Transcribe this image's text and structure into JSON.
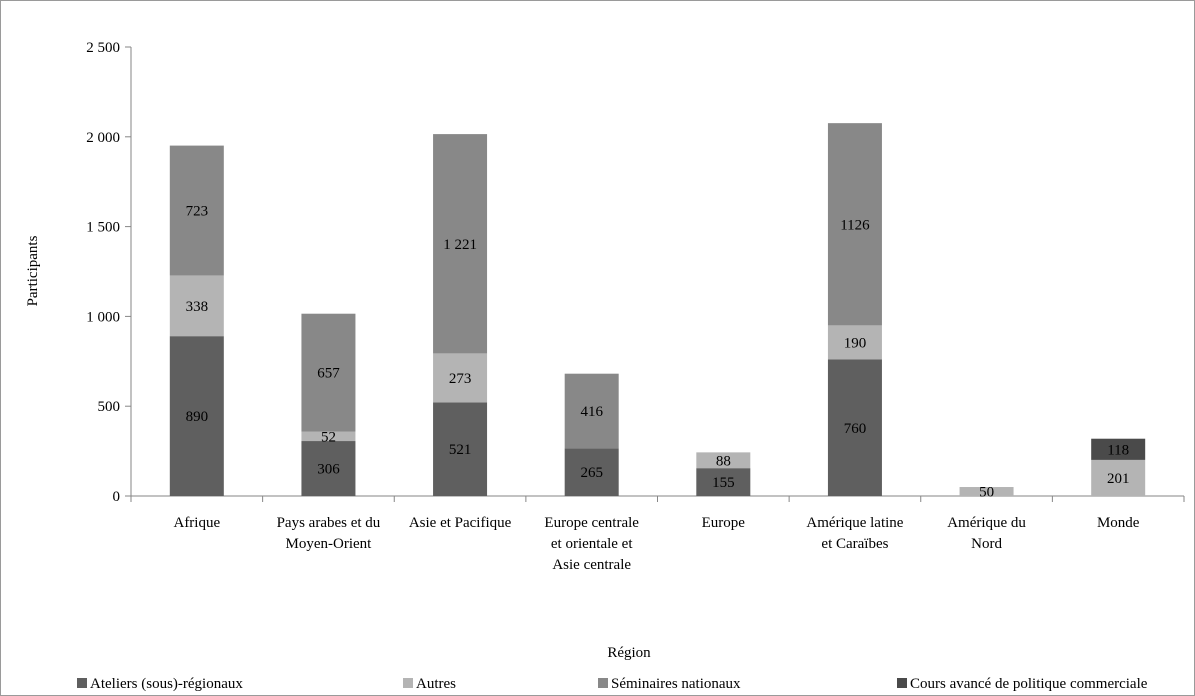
{
  "chart_data": {
    "type": "bar",
    "stacked": true,
    "xlabel": "Région",
    "ylabel": "Participants",
    "ylim": [
      0,
      2500
    ],
    "yticks": [
      0,
      500,
      1000,
      1500,
      2000,
      2500
    ],
    "ytick_labels": [
      "0",
      "500",
      "1 000",
      "1 500",
      "2 000",
      "2 500"
    ],
    "grid": false,
    "legend_position": "bottom",
    "categories": [
      [
        "Afrique"
      ],
      [
        "Pays arabes et du",
        "Moyen-Orient"
      ],
      [
        "Asie et Pacifique"
      ],
      [
        "Europe centrale",
        "et orientale et",
        "Asie centrale"
      ],
      [
        "Europe"
      ],
      [
        "Amérique latine",
        "et Caraïbes"
      ],
      [
        "Amérique du",
        "Nord"
      ],
      [
        "Monde"
      ]
    ],
    "series": [
      {
        "name": "Ateliers (sous)-régionaux",
        "color": "#5f5f5f",
        "values": [
          890,
          306,
          521,
          265,
          155,
          760,
          0,
          0
        ],
        "labels": [
          "890",
          "306",
          "521",
          "265",
          "155",
          "760",
          "",
          ""
        ]
      },
      {
        "name": "Autres",
        "color": "#b4b4b4",
        "values": [
          338,
          52,
          273,
          0,
          88,
          190,
          50,
          201
        ],
        "labels": [
          "338",
          "52",
          "273",
          "",
          "88",
          "190",
          "50",
          "201"
        ]
      },
      {
        "name": "Séminaires nationaux",
        "color": "#888888",
        "values": [
          723,
          657,
          1221,
          416,
          0,
          1126,
          0,
          0
        ],
        "labels": [
          "723",
          "657",
          "1 221",
          "416",
          "",
          "1126",
          "",
          ""
        ]
      },
      {
        "name": "Cours avancé de politique commerciale",
        "color": "#4a4a4a",
        "values": [
          0,
          0,
          0,
          0,
          0,
          0,
          0,
          118
        ],
        "labels": [
          "",
          "",
          "",
          "",
          "",
          "",
          "",
          "118"
        ]
      }
    ]
  }
}
